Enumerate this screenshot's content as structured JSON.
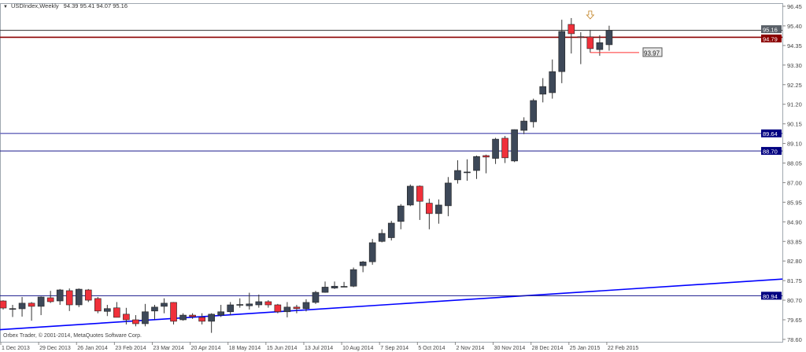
{
  "header": {
    "symbol": "USDIndex,Weekly",
    "ohlc": "94.39 95.41 94.07 95.16"
  },
  "copyright": "Orbex Trader, © 2001-2014, MetaQuotes Software Corp.",
  "colors": {
    "bull": "#3d4858",
    "bear": "#f0303a",
    "wick": "#333333",
    "support_line": "#1a1a8c",
    "trend_line": "#0000ff",
    "resistance_red": "#8b0000",
    "close_line": "#333333",
    "marker": "#ff3030"
  },
  "chart_data": {
    "type": "candlestick",
    "title": "USDIndex,Weekly",
    "ylim": [
      78.6,
      96.6
    ],
    "y_ticks": [
      "96.45",
      "95.40",
      "94.35",
      "93.30",
      "92.25",
      "91.20",
      "90.15",
      "89.10",
      "88.05",
      "87.00",
      "85.95",
      "84.90",
      "83.85",
      "82.80",
      "81.75",
      "80.70",
      "79.65",
      "78.60"
    ],
    "x_tick_labels": [
      "1 Dec 2013",
      "29 Dec 2013",
      "26 Jan 2014",
      "23 Feb 2014",
      "23 Mar 2014",
      "20 Apr 2014",
      "18 May 2014",
      "15 Jun 2014",
      "13 Jul 2014",
      "10 Aug 2014",
      "7 Sep 2014",
      "5 Oct 2014",
      "2 Nov 2014",
      "30 Nov 2014",
      "28 Dec 2014",
      "25 Jan 2015",
      "22 Feb 2015"
    ],
    "x_tick_every": 4,
    "grid": false,
    "candles": [
      [
        80.66,
        80.7,
        80.2,
        80.28
      ],
      [
        80.25,
        80.45,
        79.8,
        80.25
      ],
      [
        80.24,
        80.87,
        79.82,
        80.54
      ],
      [
        80.54,
        80.6,
        79.6,
        80.37
      ],
      [
        80.37,
        80.9,
        79.9,
        80.87
      ],
      [
        80.83,
        81.2,
        80.55,
        80.62
      ],
      [
        80.66,
        81.3,
        80.45,
        81.25
      ],
      [
        81.21,
        81.33,
        80.12,
        80.45
      ],
      [
        80.45,
        81.33,
        80.33,
        81.29
      ],
      [
        81.25,
        81.3,
        80.6,
        80.7
      ],
      [
        80.79,
        80.87,
        80.0,
        80.12
      ],
      [
        80.1,
        80.45,
        79.85,
        80.25
      ],
      [
        80.29,
        80.6,
        79.78,
        79.78
      ],
      [
        79.95,
        80.29,
        79.4,
        79.65
      ],
      [
        79.65,
        79.9,
        79.3,
        79.44
      ],
      [
        79.44,
        80.5,
        79.3,
        80.08
      ],
      [
        80.12,
        80.45,
        79.65,
        80.33
      ],
      [
        80.37,
        80.8,
        80.0,
        80.54
      ],
      [
        80.58,
        80.6,
        79.4,
        79.57
      ],
      [
        79.65,
        80.0,
        79.6,
        79.9
      ],
      [
        79.9,
        80.0,
        79.7,
        79.82
      ],
      [
        79.78,
        80.0,
        79.4,
        79.57
      ],
      [
        79.57,
        80.0,
        78.95,
        79.95
      ],
      [
        79.9,
        80.45,
        79.8,
        80.08
      ],
      [
        80.08,
        80.6,
        79.9,
        80.45
      ],
      [
        80.45,
        80.8,
        80.3,
        80.47
      ],
      [
        80.4,
        81.1,
        80.2,
        80.5
      ],
      [
        80.45,
        81.0,
        80.3,
        80.62
      ],
      [
        80.62,
        80.7,
        80.3,
        80.45
      ],
      [
        80.45,
        80.5,
        80.0,
        80.08
      ],
      [
        80.08,
        80.6,
        79.78,
        80.33
      ],
      [
        80.33,
        80.45,
        80.0,
        80.25
      ],
      [
        80.25,
        80.75,
        80.1,
        80.58
      ],
      [
        80.58,
        81.2,
        80.5,
        81.12
      ],
      [
        81.12,
        81.7,
        81.1,
        81.4
      ],
      [
        81.35,
        81.7,
        81.3,
        81.45
      ],
      [
        81.42,
        81.68,
        81.4,
        81.44
      ],
      [
        81.45,
        82.45,
        81.4,
        82.34
      ],
      [
        82.55,
        82.8,
        82.2,
        82.75
      ],
      [
        82.76,
        83.98,
        82.6,
        83.78
      ],
      [
        83.85,
        84.5,
        83.8,
        84.28
      ],
      [
        84.05,
        84.95,
        83.9,
        84.83
      ],
      [
        84.92,
        85.85,
        84.5,
        85.75
      ],
      [
        85.8,
        86.9,
        85.74,
        86.81
      ],
      [
        86.81,
        86.85,
        85.0,
        86.0
      ],
      [
        85.9,
        86.14,
        84.5,
        85.34
      ],
      [
        85.34,
        86.1,
        84.8,
        85.8
      ],
      [
        85.76,
        87.3,
        85.2,
        86.98
      ],
      [
        87.15,
        88.2,
        86.95,
        87.65
      ],
      [
        87.56,
        88.25,
        87.1,
        87.57
      ],
      [
        87.65,
        88.45,
        87.2,
        88.4
      ],
      [
        88.45,
        88.5,
        87.5,
        88.37
      ],
      [
        88.3,
        89.4,
        88.0,
        89.33
      ],
      [
        89.38,
        89.5,
        88.05,
        88.33
      ],
      [
        88.16,
        89.85,
        88.1,
        89.84
      ],
      [
        89.8,
        90.5,
        89.6,
        90.3
      ],
      [
        90.26,
        91.5,
        89.95,
        91.4
      ],
      [
        91.74,
        92.6,
        91.3,
        92.15
      ],
      [
        91.82,
        93.6,
        91.5,
        92.95
      ],
      [
        92.95,
        95.73,
        92.33,
        95.1
      ],
      [
        95.48,
        95.82,
        93.92,
        94.98
      ],
      [
        94.82,
        95.06,
        93.35,
        94.8
      ],
      [
        94.81,
        95.19,
        93.97,
        94.18
      ],
      [
        94.13,
        94.9,
        93.8,
        94.5
      ],
      [
        94.39,
        95.41,
        94.07,
        95.16
      ]
    ],
    "horizontal_lines": [
      {
        "price": 95.16,
        "label": "95.16",
        "kind": "close"
      },
      {
        "price": 94.79,
        "label": "94.79",
        "kind": "resistance_red"
      },
      {
        "price": 89.64,
        "label": "89.64",
        "kind": "support_light"
      },
      {
        "price": 88.7,
        "label": "88.70",
        "kind": "support"
      },
      {
        "price": 80.94,
        "label": "80.94",
        "kind": "support"
      }
    ],
    "trend_line": {
      "from_price": 79.12,
      "to_price": 81.83
    },
    "low_marker": {
      "candle": 62,
      "price": 93.97,
      "label": "93.97"
    },
    "arrow_marker": {
      "candle": 62,
      "icon": "down-arrow-icon"
    }
  }
}
